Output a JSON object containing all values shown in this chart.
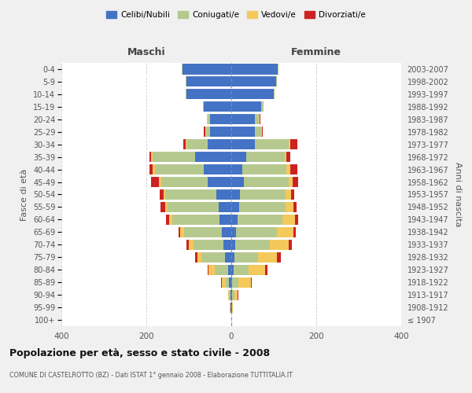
{
  "age_groups": [
    "100+",
    "95-99",
    "90-94",
    "85-89",
    "80-84",
    "75-79",
    "70-74",
    "65-69",
    "60-64",
    "55-59",
    "50-54",
    "45-49",
    "40-44",
    "35-39",
    "30-34",
    "25-29",
    "20-24",
    "15-19",
    "10-14",
    "5-9",
    "0-4"
  ],
  "birth_years": [
    "≤ 1907",
    "1908-1912",
    "1913-1917",
    "1918-1922",
    "1923-1927",
    "1928-1932",
    "1933-1937",
    "1938-1942",
    "1943-1947",
    "1948-1952",
    "1953-1957",
    "1958-1962",
    "1963-1967",
    "1968-1972",
    "1973-1977",
    "1978-1982",
    "1983-1987",
    "1988-1992",
    "1993-1997",
    "1998-2002",
    "2003-2007"
  ],
  "maschi": {
    "celibi": [
      0,
      1,
      2,
      5,
      8,
      15,
      18,
      22,
      28,
      30,
      35,
      55,
      65,
      85,
      55,
      50,
      50,
      65,
      105,
      105,
      115
    ],
    "coniugati": [
      0,
      1,
      3,
      8,
      30,
      55,
      70,
      90,
      110,
      120,
      120,
      110,
      115,
      100,
      50,
      10,
      5,
      2,
      2,
      2,
      2
    ],
    "vedovi": [
      0,
      1,
      3,
      10,
      15,
      10,
      12,
      8,
      8,
      5,
      5,
      5,
      5,
      3,
      3,
      2,
      2,
      0,
      0,
      0,
      0
    ],
    "divorziati": [
      0,
      0,
      0,
      1,
      2,
      5,
      5,
      5,
      8,
      12,
      8,
      18,
      8,
      5,
      5,
      2,
      1,
      0,
      0,
      0,
      0
    ]
  },
  "femmine": {
    "nubili": [
      0,
      1,
      2,
      2,
      5,
      8,
      10,
      12,
      15,
      18,
      20,
      30,
      25,
      35,
      55,
      55,
      55,
      70,
      100,
      105,
      110
    ],
    "coniugate": [
      0,
      1,
      5,
      15,
      35,
      55,
      80,
      95,
      105,
      110,
      108,
      105,
      105,
      90,
      80,
      15,
      10,
      5,
      2,
      2,
      2
    ],
    "vedove": [
      0,
      2,
      8,
      30,
      40,
      45,
      45,
      40,
      30,
      18,
      12,
      10,
      8,
      5,
      3,
      2,
      1,
      0,
      0,
      0,
      0
    ],
    "divorziate": [
      0,
      0,
      1,
      2,
      5,
      8,
      8,
      5,
      8,
      8,
      8,
      12,
      18,
      8,
      18,
      2,
      2,
      0,
      0,
      0,
      0
    ]
  },
  "colors": {
    "celibi": "#4472c4",
    "coniugati": "#b5c98e",
    "vedovi": "#f5c85c",
    "divorziati": "#cc2222"
  },
  "xlim": [
    -400,
    400
  ],
  "xticks": [
    -400,
    -200,
    0,
    200,
    400
  ],
  "xticklabels": [
    "400",
    "200",
    "0",
    "200",
    "400"
  ],
  "title": "Popolazione per età, sesso e stato civile - 2008",
  "subtitle": "COMUNE DI CASTELROTTO (BZ) - Dati ISTAT 1° gennaio 2008 - Elaborazione TUTTITALIA.IT",
  "ylabel_left": "Fasce di età",
  "ylabel_right": "Anni di nascita",
  "label_maschi": "Maschi",
  "label_femmine": "Femmine",
  "legend_labels": [
    "Celibi/Nubili",
    "Coniugati/e",
    "Vedovi/e",
    "Divorziati/e"
  ],
  "bg_color": "#f0f0f0",
  "plot_bg": "#ffffff"
}
